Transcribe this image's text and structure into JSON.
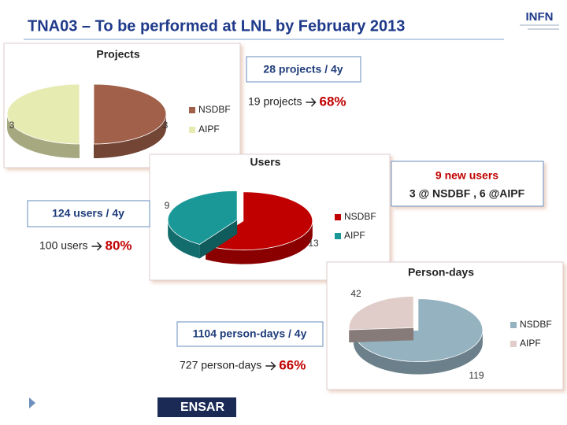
{
  "title": "TNA03 – To be performed at LNL by February 2013",
  "logos": [
    "INFN",
    "ENSAR"
  ],
  "notes": [
    {
      "box": "28 projects / 4y",
      "summary": "19 projects",
      "percent": "68%"
    },
    {
      "box": "124 users / 4y",
      "summary": "100 users",
      "percent": "80%"
    },
    {
      "box": "1104 person-days / 4y",
      "summary": "727 person-days",
      "percent": "66%"
    }
  ],
  "callout": [
    "9 new users",
    "3 @ NSDBF , 6 @AIPF"
  ],
  "chart_data": [
    {
      "type": "pie",
      "title": "Projects",
      "categories": [
        "NSDBF",
        "AIPF"
      ],
      "values": [
        3,
        3
      ],
      "colors": [
        "#a0604a",
        "#e6ebb2"
      ]
    },
    {
      "type": "pie",
      "title": "Users",
      "categories": [
        "NSDBF",
        "AIPF"
      ],
      "values": [
        13,
        9
      ],
      "colors": [
        "#c00000",
        "#1a9898"
      ]
    },
    {
      "type": "pie",
      "title": "Person-days",
      "categories": [
        "NSDBF",
        "AIPF"
      ],
      "values": [
        119,
        42
      ],
      "colors": [
        "#94b2c0",
        "#e0cdc9"
      ]
    }
  ]
}
